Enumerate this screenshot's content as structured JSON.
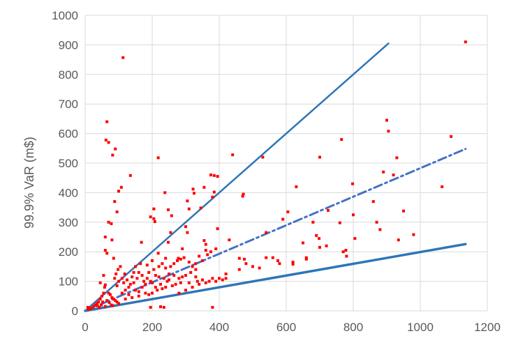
{
  "chart_data": {
    "type": "scatter",
    "title": "",
    "xlabel": "",
    "ylabel": "99.9% VaR (m$)",
    "xlim": [
      0,
      1200
    ],
    "ylim": [
      0,
      1000
    ],
    "xticks": [
      "0",
      "200",
      "400",
      "600",
      "800",
      "1000",
      "1200"
    ],
    "yticks": [
      "0",
      "100",
      "200",
      "300",
      "400",
      "500",
      "600",
      "700",
      "800",
      "900",
      "1000"
    ],
    "grid": "vertical and horizontal",
    "colors": {
      "points": "#ff0000",
      "lines": "#2e75b6",
      "dashed": "#4472c4",
      "grid": "#d9d9d9",
      "text": "#595959"
    },
    "lines": [
      {
        "style": "solid",
        "x": [
          0,
          905
        ],
        "y": [
          0,
          905
        ]
      },
      {
        "style": "dash-dot",
        "x": [
          0,
          1135
        ],
        "y": [
          0,
          548
        ]
      },
      {
        "style": "solid",
        "x": [
          0,
          1135
        ],
        "y": [
          0,
          226
        ]
      }
    ],
    "points": [
      [
        113,
        857
      ],
      [
        1135,
        910
      ],
      [
        65,
        640
      ],
      [
        62,
        578
      ],
      [
        70,
        570
      ],
      [
        90,
        548
      ],
      [
        82,
        527
      ],
      [
        135,
        458
      ],
      [
        108,
        418
      ],
      [
        100,
        405
      ],
      [
        88,
        370
      ],
      [
        95,
        335
      ],
      [
        70,
        300
      ],
      [
        78,
        295
      ],
      [
        60,
        250
      ],
      [
        80,
        240
      ],
      [
        60,
        205
      ],
      [
        65,
        195
      ],
      [
        85,
        178
      ],
      [
        55,
        120
      ],
      [
        45,
        95
      ],
      [
        218,
        518
      ],
      [
        238,
        400
      ],
      [
        205,
        345
      ],
      [
        248,
        342
      ],
      [
        195,
        318
      ],
      [
        205,
        312
      ],
      [
        208,
        302
      ],
      [
        258,
        322
      ],
      [
        168,
        232
      ],
      [
        322,
        412
      ],
      [
        355,
        418
      ],
      [
        325,
        398
      ],
      [
        375,
        460
      ],
      [
        385,
        458
      ],
      [
        395,
        455
      ],
      [
        385,
        402
      ],
      [
        380,
        385
      ],
      [
        305,
        372
      ],
      [
        310,
        345
      ],
      [
        345,
        348
      ],
      [
        355,
        238
      ],
      [
        360,
        225
      ],
      [
        360,
        205
      ],
      [
        395,
        278
      ],
      [
        300,
        285
      ],
      [
        305,
        265
      ],
      [
        255,
        265
      ],
      [
        248,
        232
      ],
      [
        278,
        178
      ],
      [
        290,
        210
      ],
      [
        240,
        178
      ],
      [
        218,
        195
      ],
      [
        200,
        170
      ],
      [
        185,
        155
      ],
      [
        165,
        160
      ],
      [
        150,
        150
      ],
      [
        145,
        130
      ],
      [
        140,
        115
      ],
      [
        118,
        125
      ],
      [
        110,
        110
      ],
      [
        100,
        100
      ],
      [
        95,
        85
      ],
      [
        130,
        80
      ],
      [
        120,
        70
      ],
      [
        160,
        65
      ],
      [
        200,
        95
      ],
      [
        250,
        105
      ],
      [
        300,
        120
      ],
      [
        330,
        115
      ],
      [
        370,
        100
      ],
      [
        380,
        110
      ],
      [
        400,
        110
      ],
      [
        440,
        528
      ],
      [
        472,
        395
      ],
      [
        470,
        388
      ],
      [
        430,
        240
      ],
      [
        460,
        178
      ],
      [
        475,
        175
      ],
      [
        460,
        140
      ],
      [
        480,
        160
      ],
      [
        420,
        125
      ],
      [
        500,
        150
      ],
      [
        520,
        145
      ],
      [
        540,
        265
      ],
      [
        530,
        520
      ],
      [
        540,
        180
      ],
      [
        560,
        180
      ],
      [
        575,
        170
      ],
      [
        580,
        160
      ],
      [
        590,
        310
      ],
      [
        605,
        335
      ],
      [
        620,
        165
      ],
      [
        620,
        158
      ],
      [
        630,
        420
      ],
      [
        650,
        230
      ],
      [
        660,
        180
      ],
      [
        660,
        175
      ],
      [
        680,
        300
      ],
      [
        690,
        255
      ],
      [
        698,
        245
      ],
      [
        700,
        520
      ],
      [
        700,
        215
      ],
      [
        720,
        220
      ],
      [
        725,
        340
      ],
      [
        760,
        298
      ],
      [
        765,
        580
      ],
      [
        770,
        200
      ],
      [
        778,
        205
      ],
      [
        780,
        185
      ],
      [
        798,
        430
      ],
      [
        800,
        325
      ],
      [
        805,
        245
      ],
      [
        860,
        370
      ],
      [
        870,
        300
      ],
      [
        880,
        275
      ],
      [
        890,
        470
      ],
      [
        900,
        645
      ],
      [
        905,
        608
      ],
      [
        920,
        460
      ],
      [
        930,
        518
      ],
      [
        935,
        240
      ],
      [
        950,
        338
      ],
      [
        980,
        258
      ],
      [
        1065,
        420
      ],
      [
        1092,
        590
      ],
      [
        60,
        88
      ],
      [
        58,
        80
      ],
      [
        55,
        60
      ],
      [
        50,
        50
      ],
      [
        45,
        40
      ],
      [
        40,
        30
      ],
      [
        35,
        25
      ],
      [
        30,
        20
      ],
      [
        25,
        15
      ],
      [
        20,
        10
      ],
      [
        15,
        8
      ],
      [
        10,
        5
      ],
      [
        8,
        12
      ],
      [
        70,
        60
      ],
      [
        75,
        55
      ],
      [
        80,
        45
      ],
      [
        85,
        40
      ],
      [
        90,
        35
      ],
      [
        95,
        30
      ],
      [
        100,
        25
      ],
      [
        120,
        40
      ],
      [
        140,
        45
      ],
      [
        160,
        50
      ],
      [
        180,
        60
      ],
      [
        190,
        55
      ],
      [
        200,
        60
      ],
      [
        215,
        70
      ],
      [
        230,
        75
      ],
      [
        240,
        80
      ],
      [
        260,
        85
      ],
      [
        270,
        90
      ],
      [
        285,
        95
      ],
      [
        110,
        60
      ],
      [
        130,
        55
      ],
      [
        150,
        70
      ],
      [
        170,
        80
      ],
      [
        180,
        90
      ],
      [
        195,
        100
      ],
      [
        210,
        80
      ],
      [
        225,
        90
      ],
      [
        235,
        12
      ],
      [
        225,
        14
      ],
      [
        195,
        12
      ],
      [
        380,
        12
      ],
      [
        65,
        35
      ],
      [
        72,
        28
      ],
      [
        78,
        20
      ],
      [
        82,
        18
      ],
      [
        60,
        15
      ],
      [
        48,
        20
      ],
      [
        52,
        30
      ],
      [
        42,
        12
      ],
      [
        36,
        18
      ],
      [
        88,
        110
      ],
      [
        92,
        125
      ],
      [
        98,
        140
      ],
      [
        105,
        150
      ],
      [
        115,
        95
      ],
      [
        125,
        105
      ],
      [
        135,
        90
      ],
      [
        145,
        95
      ],
      [
        155,
        110
      ],
      [
        160,
        130
      ],
      [
        170,
        120
      ],
      [
        175,
        100
      ],
      [
        185,
        110
      ],
      [
        190,
        130
      ],
      [
        205,
        140
      ],
      [
        220,
        150
      ],
      [
        230,
        160
      ],
      [
        240,
        145
      ],
      [
        255,
        150
      ],
      [
        265,
        160
      ],
      [
        275,
        170
      ],
      [
        285,
        175
      ],
      [
        295,
        180
      ],
      [
        310,
        165
      ],
      [
        320,
        150
      ],
      [
        330,
        160
      ],
      [
        340,
        185
      ],
      [
        350,
        170
      ],
      [
        365,
        190
      ],
      [
        375,
        200
      ],
      [
        390,
        210
      ],
      [
        330,
        140
      ],
      [
        315,
        130
      ],
      [
        290,
        115
      ],
      [
        280,
        110
      ],
      [
        265,
        120
      ],
      [
        250,
        125
      ],
      [
        245,
        100
      ],
      [
        235,
        110
      ],
      [
        220,
        115
      ],
      [
        210,
        120
      ],
      [
        280,
        60
      ],
      [
        300,
        70
      ],
      [
        320,
        80
      ],
      [
        340,
        90
      ],
      [
        360,
        95
      ],
      [
        390,
        100
      ],
      [
        410,
        105
      ],
      [
        420,
        110
      ],
      [
        350,
        105
      ],
      [
        335,
        100
      ],
      [
        310,
        95
      ]
    ]
  }
}
